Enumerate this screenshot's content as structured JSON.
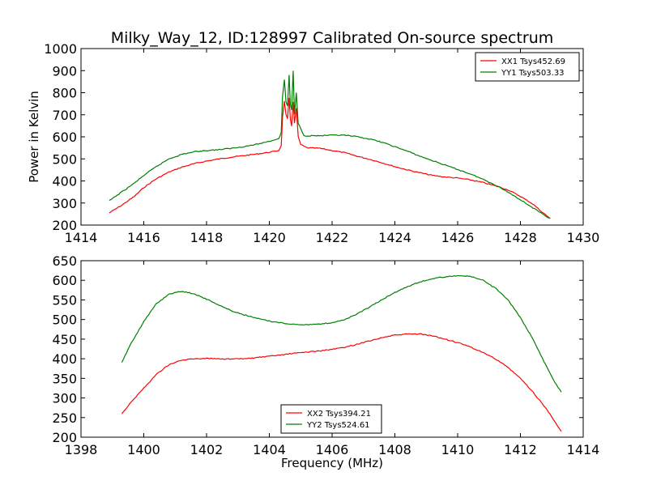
{
  "figure": {
    "title": "Milky_Way_12, ID:128997 Calibrated On-source spectrum"
  },
  "colors": {
    "xx": "#ff0000",
    "yy": "#008000",
    "axes": "#000000",
    "background": "#ffffff"
  },
  "chart_data": [
    {
      "type": "line",
      "title": "Milky_Way_12, ID:128997 Calibrated On-source spectrum",
      "xlabel": "",
      "ylabel": "Power in Kelvin",
      "xlim": [
        1414,
        1430
      ],
      "ylim": [
        200,
        1000
      ],
      "xticks": [
        "1414",
        "1416",
        "1418",
        "1420",
        "1422",
        "1424",
        "1426",
        "1428",
        "1430"
      ],
      "yticks": [
        "200",
        "300",
        "400",
        "500",
        "600",
        "700",
        "800",
        "900",
        "1000"
      ],
      "grid": false,
      "legend": "top-right",
      "series": [
        {
          "name": "XX1 Tsys452.69",
          "color": "#ff0000",
          "points": [
            [
              1414.9,
              255
            ],
            [
              1415.3,
              290
            ],
            [
              1415.7,
              330
            ],
            [
              1416.0,
              370
            ],
            [
              1416.4,
              410
            ],
            [
              1416.8,
              440
            ],
            [
              1417.2,
              462
            ],
            [
              1417.6,
              478
            ],
            [
              1418.0,
              490
            ],
            [
              1418.4,
              500
            ],
            [
              1418.8,
              508
            ],
            [
              1419.2,
              515
            ],
            [
              1419.6,
              522
            ],
            [
              1420.0,
              530
            ],
            [
              1420.3,
              538
            ],
            [
              1420.38,
              560
            ],
            [
              1420.42,
              690
            ],
            [
              1420.48,
              760
            ],
            [
              1420.53,
              700
            ],
            [
              1420.58,
              680
            ],
            [
              1420.63,
              775
            ],
            [
              1420.67,
              680
            ],
            [
              1420.71,
              650
            ],
            [
              1420.76,
              760
            ],
            [
              1420.8,
              660
            ],
            [
              1420.86,
              730
            ],
            [
              1420.92,
              600
            ],
            [
              1421.0,
              565
            ],
            [
              1421.2,
              550
            ],
            [
              1421.6,
              548
            ],
            [
              1422.0,
              538
            ],
            [
              1422.4,
              528
            ],
            [
              1422.8,
              512
            ],
            [
              1423.2,
              498
            ],
            [
              1423.6,
              482
            ],
            [
              1424.0,
              465
            ],
            [
              1424.4,
              450
            ],
            [
              1424.8,
              437
            ],
            [
              1425.2,
              425
            ],
            [
              1425.6,
              418
            ],
            [
              1426.0,
              413
            ],
            [
              1426.4,
              405
            ],
            [
              1426.8,
              393
            ],
            [
              1427.2,
              378
            ],
            [
              1427.6,
              360
            ],
            [
              1428.0,
              330
            ],
            [
              1428.4,
              295
            ],
            [
              1428.7,
              258
            ],
            [
              1428.95,
              230
            ]
          ]
        },
        {
          "name": "YY1 Tsys503.33",
          "color": "#008000",
          "points": [
            [
              1414.9,
              310
            ],
            [
              1415.3,
              350
            ],
            [
              1415.7,
              390
            ],
            [
              1416.0,
              425
            ],
            [
              1416.4,
              465
            ],
            [
              1416.8,
              500
            ],
            [
              1417.2,
              520
            ],
            [
              1417.6,
              532
            ],
            [
              1418.0,
              538
            ],
            [
              1418.4,
              542
            ],
            [
              1418.8,
              548
            ],
            [
              1419.2,
              556
            ],
            [
              1419.6,
              566
            ],
            [
              1420.0,
              580
            ],
            [
              1420.3,
              592
            ],
            [
              1420.38,
              620
            ],
            [
              1420.42,
              780
            ],
            [
              1420.48,
              860
            ],
            [
              1420.53,
              760
            ],
            [
              1420.58,
              740
            ],
            [
              1420.63,
              880
            ],
            [
              1420.67,
              750
            ],
            [
              1420.71,
              720
            ],
            [
              1420.76,
              900
            ],
            [
              1420.8,
              700
            ],
            [
              1420.86,
              800
            ],
            [
              1420.92,
              660
            ],
            [
              1421.0,
              640
            ],
            [
              1421.1,
              605
            ],
            [
              1421.6,
              605
            ],
            [
              1422.0,
              607
            ],
            [
              1422.4,
              607
            ],
            [
              1422.8,
              600
            ],
            [
              1423.2,
              590
            ],
            [
              1423.6,
              575
            ],
            [
              1424.0,
              555
            ],
            [
              1424.4,
              535
            ],
            [
              1424.8,
              512
            ],
            [
              1425.2,
              492
            ],
            [
              1425.6,
              472
            ],
            [
              1426.0,
              452
            ],
            [
              1426.4,
              432
            ],
            [
              1426.8,
              408
            ],
            [
              1427.2,
              382
            ],
            [
              1427.6,
              350
            ],
            [
              1428.0,
              315
            ],
            [
              1428.4,
              278
            ],
            [
              1428.7,
              250
            ],
            [
              1428.95,
              230
            ]
          ]
        }
      ]
    },
    {
      "type": "line",
      "title": "",
      "xlabel": "Frequency (MHz)",
      "ylabel": "",
      "xlim": [
        1398,
        1414
      ],
      "ylim": [
        200,
        650
      ],
      "xticks": [
        "1398",
        "1400",
        "1402",
        "1404",
        "1406",
        "1408",
        "1410",
        "1412",
        "1414"
      ],
      "yticks": [
        "200",
        "250",
        "300",
        "350",
        "400",
        "450",
        "500",
        "550",
        "600",
        "650"
      ],
      "grid": false,
      "legend": "bottom-center",
      "series": [
        {
          "name": "XX2 Tsys394.21",
          "color": "#ff0000",
          "points": [
            [
              1399.3,
              260
            ],
            [
              1399.6,
              290
            ],
            [
              1400.0,
              325
            ],
            [
              1400.4,
              360
            ],
            [
              1400.8,
              385
            ],
            [
              1401.2,
              396
            ],
            [
              1401.6,
              400
            ],
            [
              1402.0,
              401
            ],
            [
              1402.4,
              400
            ],
            [
              1402.8,
              399
            ],
            [
              1403.2,
              400
            ],
            [
              1403.6,
              403
            ],
            [
              1404.0,
              406
            ],
            [
              1404.4,
              410
            ],
            [
              1404.8,
              414
            ],
            [
              1405.2,
              417
            ],
            [
              1405.6,
              420
            ],
            [
              1406.0,
              424
            ],
            [
              1406.4,
              429
            ],
            [
              1406.8,
              437
            ],
            [
              1407.2,
              446
            ],
            [
              1407.6,
              454
            ],
            [
              1408.0,
              460
            ],
            [
              1408.4,
              463
            ],
            [
              1408.8,
              463
            ],
            [
              1409.2,
              458
            ],
            [
              1409.6,
              450
            ],
            [
              1410.0,
              441
            ],
            [
              1410.4,
              430
            ],
            [
              1410.8,
              416
            ],
            [
              1411.2,
              400
            ],
            [
              1411.6,
              378
            ],
            [
              1412.0,
              350
            ],
            [
              1412.4,
              315
            ],
            [
              1412.8,
              275
            ],
            [
              1413.1,
              240
            ],
            [
              1413.3,
              215
            ]
          ]
        },
        {
          "name": "YY2 Tsys524.61",
          "color": "#008000",
          "points": [
            [
              1399.3,
              390
            ],
            [
              1399.6,
              440
            ],
            [
              1400.0,
              495
            ],
            [
              1400.4,
              540
            ],
            [
              1400.8,
              565
            ],
            [
              1401.2,
              572
            ],
            [
              1401.6,
              566
            ],
            [
              1402.0,
              552
            ],
            [
              1402.4,
              537
            ],
            [
              1402.8,
              522
            ],
            [
              1403.2,
              512
            ],
            [
              1403.6,
              503
            ],
            [
              1404.0,
              496
            ],
            [
              1404.4,
              491
            ],
            [
              1404.8,
              488
            ],
            [
              1405.2,
              487
            ],
            [
              1405.6,
              488
            ],
            [
              1406.0,
              492
            ],
            [
              1406.4,
              500
            ],
            [
              1406.8,
              514
            ],
            [
              1407.2,
              532
            ],
            [
              1407.6,
              551
            ],
            [
              1408.0,
              569
            ],
            [
              1408.4,
              584
            ],
            [
              1408.8,
              596
            ],
            [
              1409.2,
              604
            ],
            [
              1409.6,
              609
            ],
            [
              1410.0,
              612
            ],
            [
              1410.4,
              610
            ],
            [
              1410.8,
              600
            ],
            [
              1411.2,
              580
            ],
            [
              1411.6,
              550
            ],
            [
              1412.0,
              505
            ],
            [
              1412.4,
              450
            ],
            [
              1412.8,
              385
            ],
            [
              1413.1,
              340
            ],
            [
              1413.3,
              315
            ]
          ]
        }
      ]
    }
  ]
}
